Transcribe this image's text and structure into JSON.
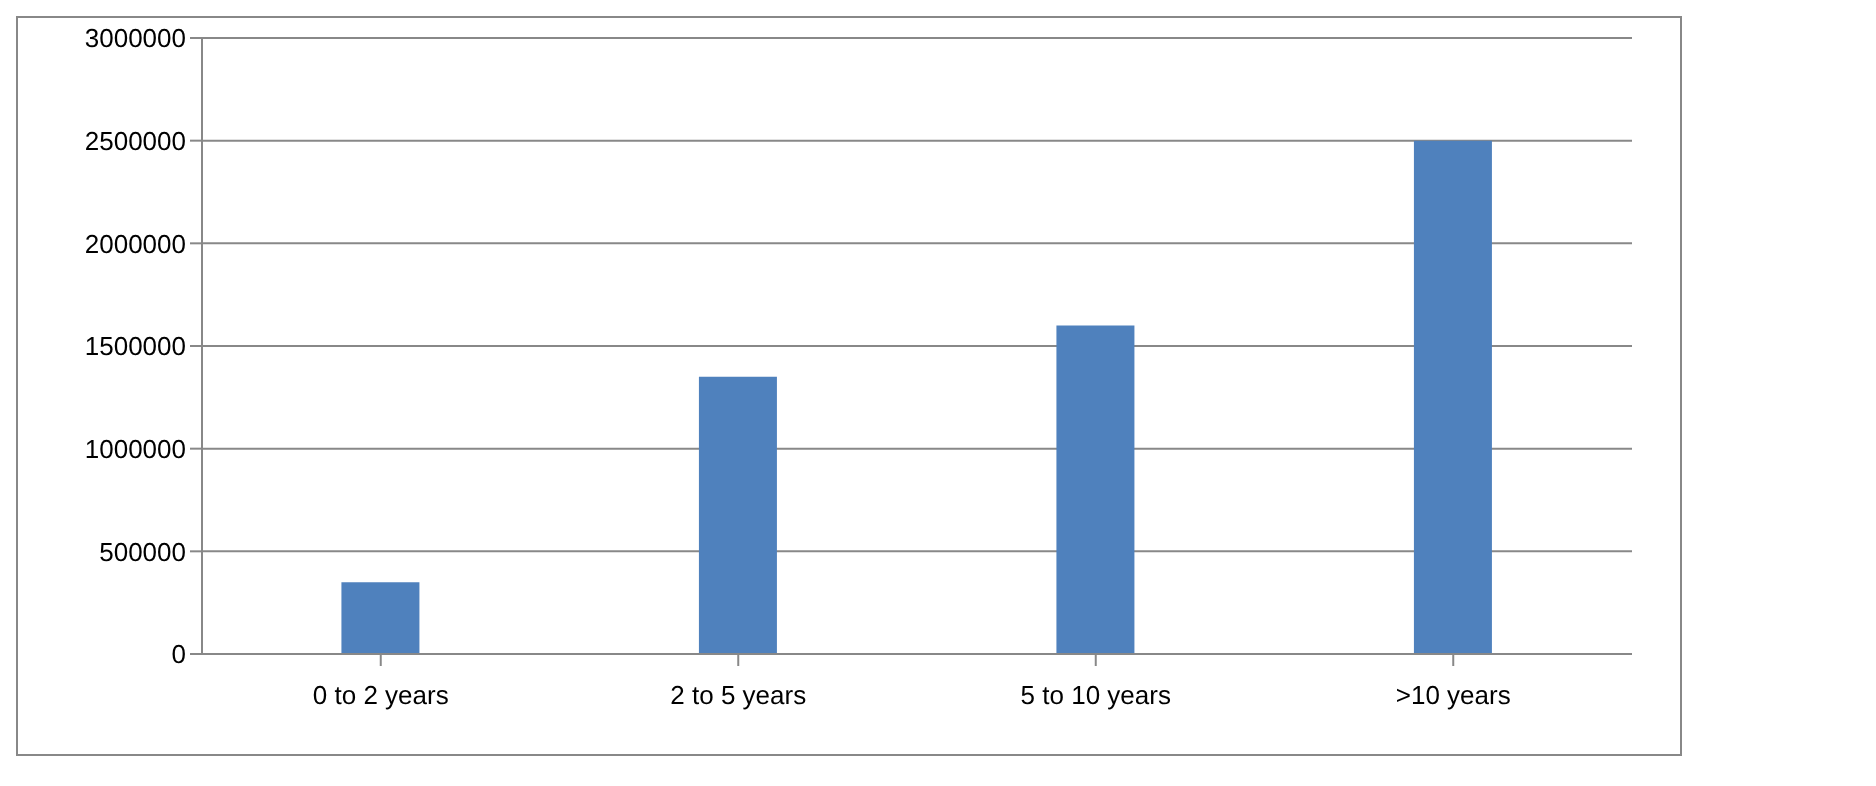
{
  "chart_data": {
    "type": "bar",
    "categories": [
      "0 to 2 years",
      "2 to 5 years",
      "5 to 10 years",
      ">10 years"
    ],
    "series": [
      {
        "color": "#4f81bd",
        "values": [
          350000,
          1350000,
          1600000,
          2500000
        ]
      }
    ],
    "ylim": [
      0,
      3000000
    ],
    "yticks": [
      0,
      500000,
      1000000,
      1500000,
      2000000,
      2500000,
      3000000
    ],
    "grid": "y",
    "legend": false
  }
}
